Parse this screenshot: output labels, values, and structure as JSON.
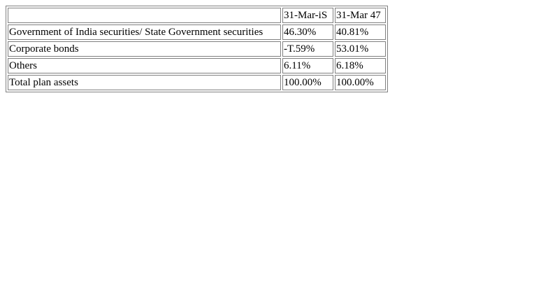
{
  "table": {
    "headers": [
      "",
      "31-Mar-iS",
      "31-Mar 47"
    ],
    "rows": [
      {
        "label": "Government of India securities/ State Government securities",
        "a": "46.30%",
        "b": "40.81%"
      },
      {
        "label": "Corporate bonds",
        "a": "-T.59%",
        "b": "53.01%"
      },
      {
        "label": "Others",
        "a": "6.11%",
        "b": "6.18%"
      },
      {
        "label": "Total plan assets",
        "a": "100.00%",
        "b": "100.00%"
      }
    ]
  }
}
